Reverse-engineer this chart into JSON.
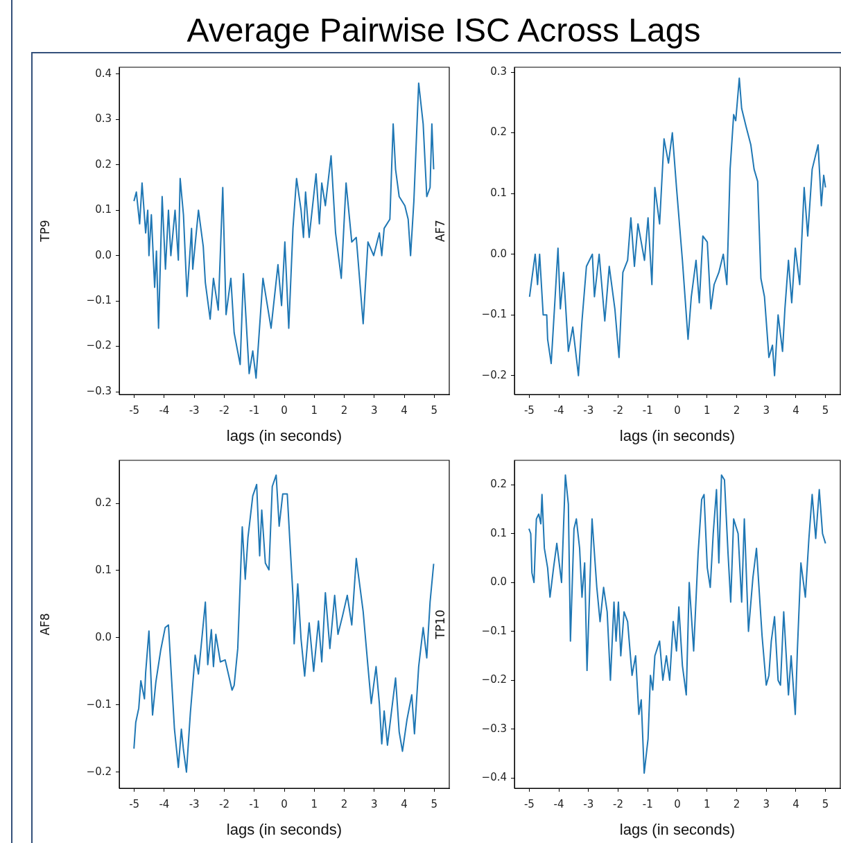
{
  "chart_data": [
    {
      "type": "line",
      "title": "Average Pairwise ISC Across Lags",
      "xlabel": "lags (in seconds)",
      "ylabel": "TP9",
      "color": "#1f77b4",
      "xlim": [
        -5.5,
        5.5
      ],
      "xticks": [
        -5,
        -4,
        -3,
        -2,
        -1,
        0,
        1,
        2,
        3,
        4,
        5
      ],
      "ylim": [
        -0.306,
        0.415
      ],
      "yticks": [
        {
          "value": -0.3,
          "label": "−0.3"
        },
        {
          "value": -0.2,
          "label": "−0.2"
        },
        {
          "value": -0.1,
          "label": "−0.1"
        },
        {
          "value": 0,
          "label": "0.0"
        },
        0.1,
        0.2,
        0.3,
        0.4
      ],
      "x": [
        -5.01,
        -4.93,
        -4.82,
        -4.74,
        -4.62,
        -4.55,
        -4.51,
        -4.43,
        -4.32,
        -4.26,
        -4.19,
        -4.07,
        -3.96,
        -3.86,
        -3.78,
        -3.64,
        -3.53,
        -3.47,
        -3.36,
        -3.24,
        -3.09,
        -3.05,
        -2.86,
        -2.7,
        -2.63,
        -2.47,
        -2.36,
        -2.2,
        -2.05,
        -1.94,
        -1.78,
        -1.67,
        -1.47,
        -1.36,
        -1.17,
        -1.05,
        -0.94,
        -0.71,
        -0.44,
        -0.21,
        -0.09,
        0.02,
        0.15,
        0.29,
        0.41,
        0.56,
        0.64,
        0.71,
        0.83,
        1.06,
        1.17,
        1.25,
        1.37,
        1.56,
        1.71,
        1.9,
        2.06,
        2.25,
        2.4,
        2.63,
        2.79,
        2.98,
        3.17,
        3.25,
        3.33,
        3.52,
        3.63,
        3.71,
        3.83,
        4.02,
        4.13,
        4.21,
        4.32,
        4.48,
        4.63,
        4.75,
        4.86,
        4.92,
        4.98
      ],
      "values": [
        0.12,
        0.14,
        0.07,
        0.16,
        0.05,
        0.1,
        0.0,
        0.09,
        -0.07,
        0.01,
        -0.16,
        0.13,
        -0.03,
        0.1,
        0.0,
        0.1,
        -0.01,
        0.17,
        0.09,
        -0.09,
        0.06,
        -0.03,
        0.1,
        0.02,
        -0.06,
        -0.14,
        -0.05,
        -0.12,
        0.15,
        -0.13,
        -0.05,
        -0.17,
        -0.24,
        -0.04,
        -0.26,
        -0.21,
        -0.27,
        -0.05,
        -0.16,
        -0.02,
        -0.11,
        0.03,
        -0.16,
        0.06,
        0.17,
        0.1,
        0.04,
        0.14,
        0.04,
        0.18,
        0.07,
        0.16,
        0.11,
        0.22,
        0.05,
        -0.05,
        0.16,
        0.03,
        0.04,
        -0.15,
        0.03,
        0.0,
        0.05,
        0.0,
        0.06,
        0.08,
        0.29,
        0.19,
        0.13,
        0.11,
        0.08,
        0.0,
        0.12,
        0.38,
        0.29,
        0.13,
        0.15,
        0.29,
        0.19
      ]
    },
    {
      "type": "line",
      "xlabel": "lags (in seconds)",
      "ylabel": "AF7",
      "color": "#1f77b4",
      "xlim": [
        -5.5,
        5.5
      ],
      "xticks": [
        -5,
        -4,
        -3,
        -2,
        -1,
        0,
        1,
        2,
        3,
        4,
        5
      ],
      "ylim": [
        -0.231,
        0.308
      ],
      "yticks": [
        {
          "value": -0.2,
          "label": "−0.2"
        },
        {
          "value": -0.1,
          "label": "−0.1"
        },
        {
          "value": 0,
          "label": "0.0"
        },
        0.1,
        0.2,
        0.3
      ],
      "x": [
        -4.99,
        -4.91,
        -4.8,
        -4.72,
        -4.65,
        -4.53,
        -4.41,
        -4.38,
        -4.26,
        -4.15,
        -4.03,
        -3.95,
        -3.84,
        -3.68,
        -3.53,
        -3.34,
        -3.22,
        -3.07,
        -2.87,
        -2.8,
        -2.64,
        -2.45,
        -2.3,
        -2.11,
        -1.97,
        -1.84,
        -1.68,
        -1.57,
        -1.45,
        -1.33,
        -1.11,
        -0.99,
        -0.86,
        -0.76,
        -0.6,
        -0.45,
        -0.3,
        -0.17,
        -0.03,
        0.17,
        0.36,
        0.47,
        0.63,
        0.74,
        0.86,
        1.01,
        1.13,
        1.24,
        1.4,
        1.55,
        1.67,
        1.78,
        1.9,
        1.97,
        2.09,
        2.17,
        2.32,
        2.48,
        2.59,
        2.71,
        2.82,
        2.94,
        3.09,
        3.21,
        3.28,
        3.4,
        3.55,
        3.63,
        3.75,
        3.86,
        3.98,
        4.13,
        4.28,
        4.4,
        4.55,
        4.75,
        4.86,
        4.94,
        5.0
      ],
      "values": [
        -0.07,
        -0.04,
        0.0,
        -0.05,
        0.0,
        -0.1,
        -0.1,
        -0.14,
        -0.18,
        -0.09,
        0.01,
        -0.09,
        -0.03,
        -0.16,
        -0.12,
        -0.2,
        -0.11,
        -0.02,
        0.0,
        -0.07,
        0.0,
        -0.11,
        -0.02,
        -0.09,
        -0.17,
        -0.03,
        -0.01,
        0.06,
        -0.02,
        0.05,
        -0.01,
        0.06,
        -0.05,
        0.11,
        0.05,
        0.19,
        0.15,
        0.2,
        0.11,
        -0.01,
        -0.14,
        -0.07,
        -0.01,
        -0.08,
        0.03,
        0.02,
        -0.09,
        -0.05,
        -0.03,
        0.0,
        -0.05,
        0.14,
        0.23,
        0.22,
        0.29,
        0.24,
        0.21,
        0.18,
        0.14,
        0.12,
        -0.04,
        -0.07,
        -0.17,
        -0.15,
        -0.2,
        -0.1,
        -0.16,
        -0.09,
        -0.01,
        -0.08,
        0.01,
        -0.05,
        0.11,
        0.03,
        0.14,
        0.18,
        0.08,
        0.13,
        0.11
      ]
    },
    {
      "type": "line",
      "xlabel": "lags (in seconds)",
      "ylabel": "AF8",
      "color": "#1f77b4",
      "xlim": [
        -5.5,
        5.5
      ],
      "xticks": [
        -5,
        -4,
        -3,
        -2,
        -1,
        0,
        1,
        2,
        3,
        4,
        5
      ],
      "ylim": [
        -0.224,
        0.264
      ],
      "yticks": [
        {
          "value": -0.2,
          "label": "−0.2"
        },
        {
          "value": -0.1,
          "label": "−0.1"
        },
        {
          "value": 0,
          "label": "0.0"
        },
        0.1,
        0.2
      ],
      "x": [
        -5.01,
        -4.95,
        -4.85,
        -4.78,
        -4.66,
        -4.62,
        -4.51,
        -4.39,
        -4.28,
        -4.12,
        -3.97,
        -3.86,
        -3.66,
        -3.53,
        -3.43,
        -3.36,
        -3.26,
        -3.13,
        -2.97,
        -2.86,
        -2.63,
        -2.55,
        -2.43,
        -2.36,
        -2.28,
        -2.13,
        -1.97,
        -1.74,
        -1.67,
        -1.55,
        -1.4,
        -1.3,
        -1.21,
        -1.05,
        -0.92,
        -0.82,
        -0.75,
        -0.63,
        -0.51,
        -0.4,
        -0.27,
        -0.17,
        -0.05,
        0.1,
        0.18,
        0.29,
        0.33,
        0.45,
        0.56,
        0.68,
        0.83,
        0.98,
        1.14,
        1.25,
        1.37,
        1.52,
        1.68,
        1.79,
        1.94,
        2.1,
        2.25,
        2.4,
        2.63,
        2.79,
        2.9,
        3.06,
        3.17,
        3.25,
        3.33,
        3.44,
        3.56,
        3.71,
        3.83,
        3.94,
        4.09,
        4.25,
        4.34,
        4.48,
        4.63,
        4.75,
        4.86,
        4.98
      ],
      "values": [
        -0.165,
        -0.126,
        -0.105,
        -0.064,
        -0.091,
        -0.052,
        0.01,
        -0.115,
        -0.066,
        -0.019,
        0.015,
        0.019,
        -0.136,
        -0.193,
        -0.136,
        -0.167,
        -0.2,
        -0.112,
        -0.026,
        -0.054,
        0.053,
        -0.04,
        0.012,
        -0.043,
        0.005,
        -0.036,
        -0.033,
        -0.078,
        -0.071,
        -0.016,
        0.165,
        0.087,
        0.149,
        0.211,
        0.228,
        0.122,
        0.19,
        0.111,
        0.101,
        0.225,
        0.242,
        0.166,
        0.214,
        0.214,
        0.149,
        0.063,
        -0.009,
        0.08,
        -0.002,
        -0.057,
        0.022,
        -0.05,
        0.025,
        -0.036,
        0.067,
        -0.016,
        0.063,
        0.005,
        0.032,
        0.063,
        0.019,
        0.118,
        0.039,
        -0.043,
        -0.098,
        -0.043,
        -0.098,
        -0.158,
        -0.109,
        -0.16,
        -0.115,
        -0.06,
        -0.14,
        -0.169,
        -0.122,
        -0.085,
        -0.143,
        -0.043,
        0.015,
        -0.03,
        0.053,
        0.11
      ]
    },
    {
      "type": "line",
      "xlabel": "lags (in seconds)",
      "ylabel": "TP10",
      "color": "#1f77b4",
      "xlim": [
        -5.5,
        5.5
      ],
      "xticks": [
        -5,
        -4,
        -3,
        -2,
        -1,
        0,
        1,
        2,
        3,
        4,
        5
      ],
      "ylim": [
        -0.421,
        0.25
      ],
      "yticks": [
        {
          "value": -0.4,
          "label": "−0.4"
        },
        {
          "value": -0.3,
          "label": "−0.3"
        },
        {
          "value": -0.2,
          "label": "−0.2"
        },
        {
          "value": -0.1,
          "label": "−0.1"
        },
        {
          "value": 0,
          "label": "0.0"
        },
        0.1,
        0.2
      ],
      "x": [
        -5.01,
        -4.95,
        -4.91,
        -4.84,
        -4.76,
        -4.68,
        -4.61,
        -4.57,
        -4.49,
        -4.38,
        -4.3,
        -4.18,
        -4.07,
        -3.91,
        -3.78,
        -3.68,
        -3.61,
        -3.49,
        -3.41,
        -3.3,
        -3.22,
        -3.13,
        -3.05,
        -2.88,
        -2.72,
        -2.61,
        -2.49,
        -2.37,
        -2.26,
        -2.14,
        -2.07,
        -1.99,
        -1.91,
        -1.8,
        -1.68,
        -1.53,
        -1.41,
        -1.3,
        -1.22,
        -1.12,
        -0.99,
        -0.91,
        -0.83,
        -0.76,
        -0.6,
        -0.49,
        -0.37,
        -0.26,
        -0.14,
        -0.03,
        0.05,
        0.17,
        0.3,
        0.4,
        0.55,
        0.7,
        0.82,
        0.9,
        1.01,
        1.11,
        1.21,
        1.32,
        1.4,
        1.49,
        1.59,
        1.71,
        1.8,
        1.9,
        2.05,
        2.17,
        2.26,
        2.4,
        2.55,
        2.67,
        2.86,
        3.0,
        3.09,
        3.17,
        3.28,
        3.4,
        3.48,
        3.59,
        3.75,
        3.84,
        3.98,
        4.05,
        4.17,
        4.32,
        4.44,
        4.55,
        4.67,
        4.79,
        4.9,
        5.0
      ],
      "values": [
        0.11,
        0.1,
        0.02,
        0.0,
        0.13,
        0.14,
        0.12,
        0.18,
        0.07,
        0.03,
        -0.03,
        0.03,
        0.08,
        0.0,
        0.22,
        0.16,
        -0.12,
        0.11,
        0.13,
        0.07,
        -0.03,
        0.04,
        -0.18,
        0.13,
        -0.01,
        -0.08,
        -0.01,
        -0.06,
        -0.2,
        -0.04,
        -0.12,
        -0.04,
        -0.15,
        -0.06,
        -0.08,
        -0.19,
        -0.15,
        -0.27,
        -0.24,
        -0.39,
        -0.32,
        -0.19,
        -0.22,
        -0.15,
        -0.12,
        -0.2,
        -0.15,
        -0.2,
        -0.08,
        -0.14,
        -0.05,
        -0.17,
        -0.23,
        0.0,
        -0.14,
        0.06,
        0.17,
        0.18,
        0.03,
        -0.01,
        0.1,
        0.19,
        0.04,
        0.22,
        0.21,
        0.06,
        -0.04,
        0.13,
        0.1,
        -0.04,
        0.13,
        -0.1,
        0.01,
        0.07,
        -0.11,
        -0.21,
        -0.19,
        -0.12,
        -0.07,
        -0.2,
        -0.21,
        -0.06,
        -0.23,
        -0.15,
        -0.27,
        -0.14,
        0.04,
        -0.03,
        0.09,
        0.18,
        0.09,
        0.19,
        0.1,
        0.08
      ]
    }
  ]
}
